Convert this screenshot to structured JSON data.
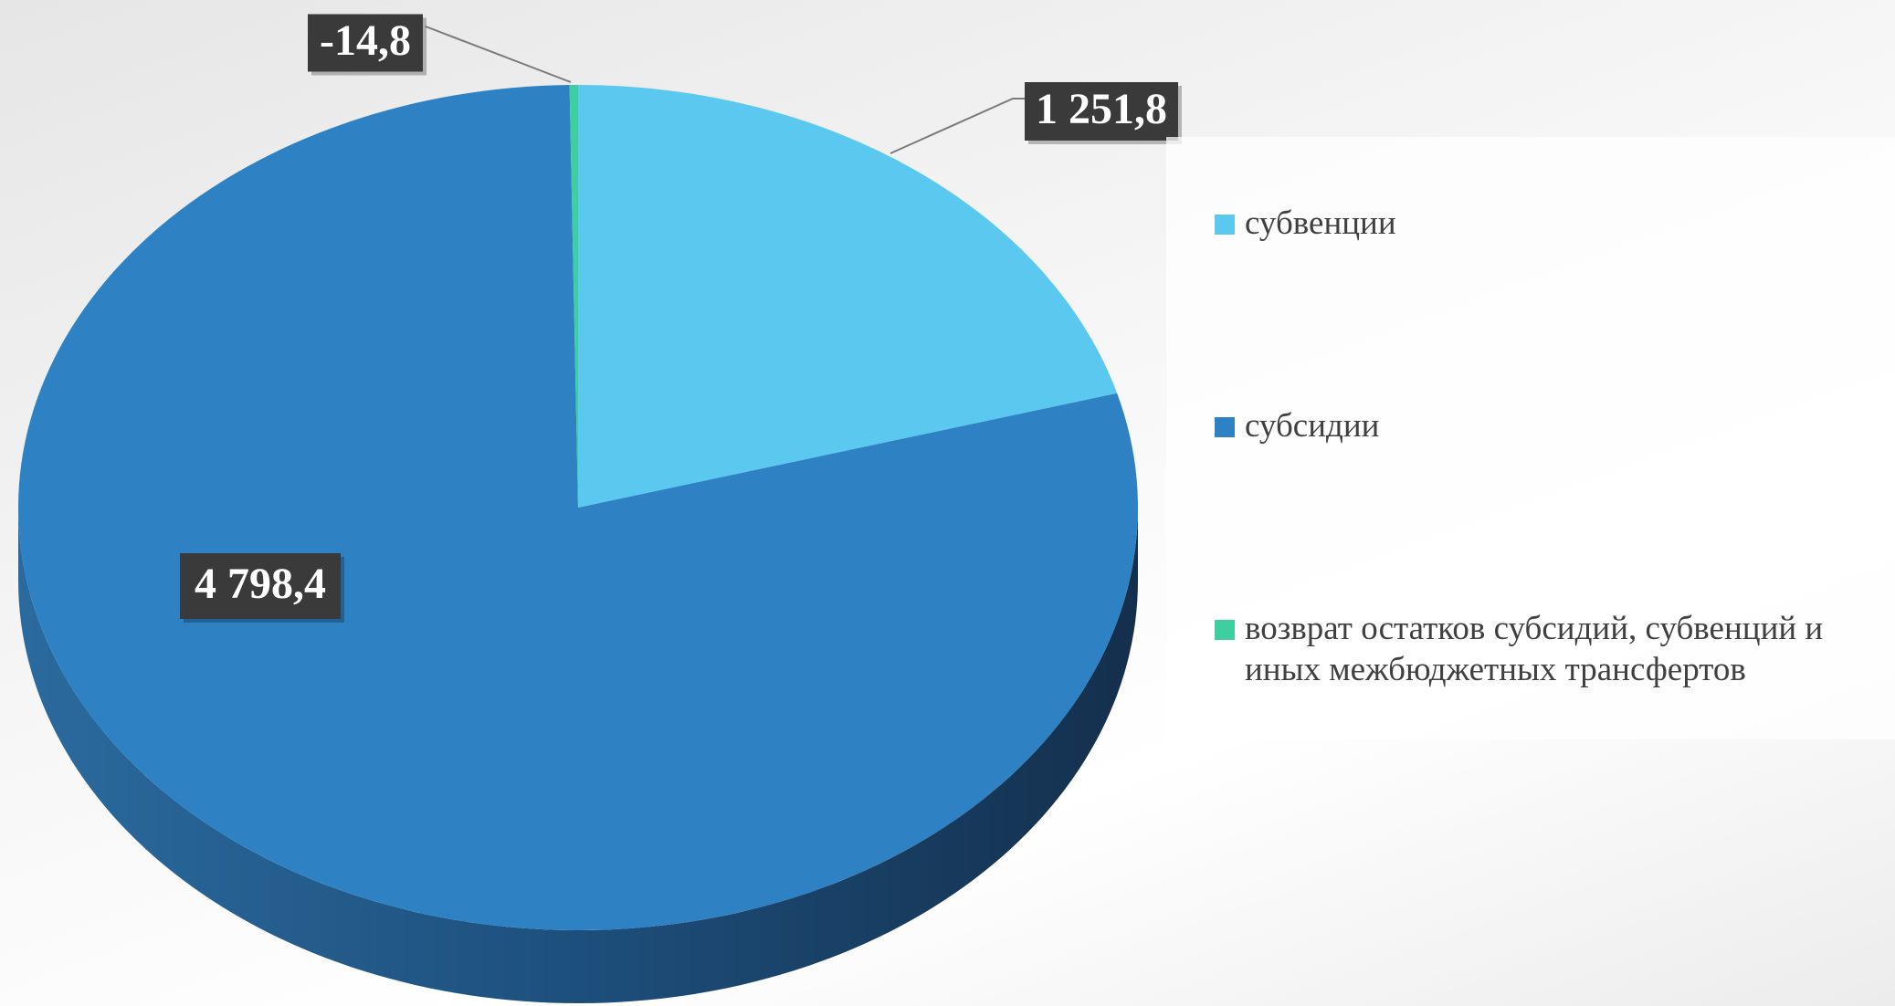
{
  "chart_data": {
    "type": "pie",
    "series": [
      {
        "name": "субвенции",
        "color": "#5bc8f0",
        "values": [
          1251.8
        ],
        "value_labels": [
          "1 251,8"
        ]
      },
      {
        "name": "субсидии",
        "color": "#2e82c4",
        "values": [
          4798.4
        ],
        "value_labels": [
          "4 798,4"
        ]
      },
      {
        "name": "возврат остатков субсидий, субвенций и иных межбюджетных трансфертов",
        "color": "#3ecfa0",
        "values": [
          -14.8
        ],
        "value_labels": [
          "-14,8"
        ]
      }
    ]
  }
}
